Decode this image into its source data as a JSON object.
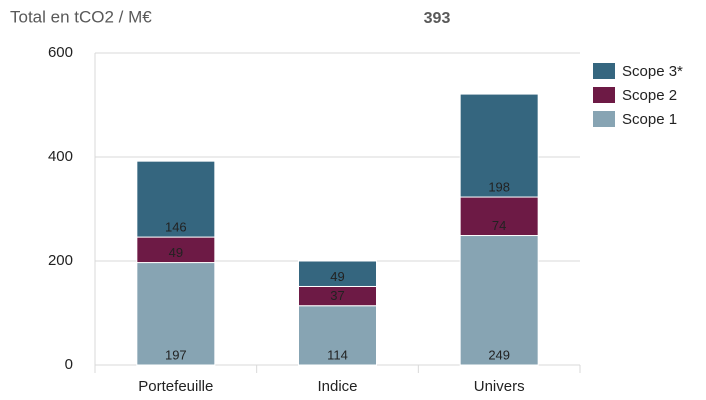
{
  "chart_data": {
    "type": "stacked_bar",
    "title": "Total en tCO2 / M€",
    "annotation": "393",
    "categories": [
      "Portefeuille",
      "Indice",
      "Univers"
    ],
    "series": [
      {
        "name": "Scope 1",
        "color": "#87a4b3",
        "values": [
          197,
          114,
          249
        ]
      },
      {
        "name": "Scope 2",
        "color": "#6d1a45",
        "values": [
          49,
          37,
          74
        ]
      },
      {
        "name": "Scope 3*",
        "color": "#35667f",
        "values": [
          146,
          49,
          198
        ]
      }
    ],
    "ylim": [
      0,
      600
    ],
    "yticks": [
      0,
      200,
      400,
      600
    ],
    "grid": true,
    "legend": "right"
  }
}
